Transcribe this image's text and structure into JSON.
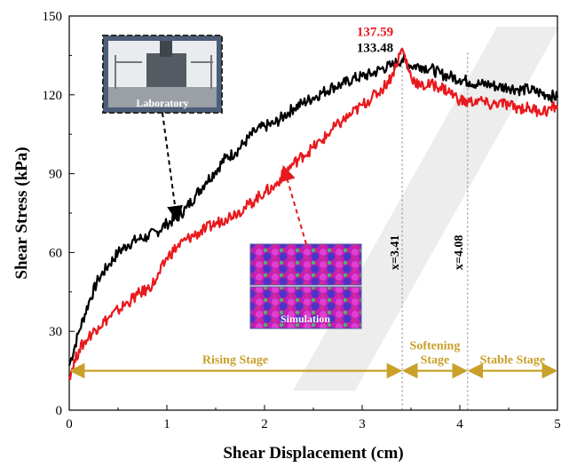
{
  "chart_data": {
    "type": "line",
    "xlabel": "Shear Displacement (cm)",
    "ylabel": "Shear Stress (kPa)",
    "xlim": [
      0,
      5
    ],
    "ylim": [
      0,
      150
    ],
    "x_ticks": [
      "0",
      "1",
      "2",
      "3",
      "4",
      "5"
    ],
    "y_ticks": [
      "0",
      "30",
      "60",
      "90",
      "120",
      "150"
    ],
    "series": [
      {
        "color": "#000000",
        "points": [
          [
            0,
            17
          ],
          [
            0.1,
            30
          ],
          [
            0.2,
            41
          ],
          [
            0.3,
            50
          ],
          [
            0.4,
            55
          ],
          [
            0.5,
            60
          ],
          [
            0.6,
            63
          ],
          [
            0.7,
            65
          ],
          [
            0.8,
            66
          ],
          [
            0.9,
            68
          ],
          [
            1.0,
            71
          ],
          [
            1.1,
            73
          ],
          [
            1.2,
            77
          ],
          [
            1.3,
            82
          ],
          [
            1.4,
            87
          ],
          [
            1.5,
            91
          ],
          [
            1.6,
            96
          ],
          [
            1.7,
            98
          ],
          [
            1.8,
            102
          ],
          [
            1.9,
            106
          ],
          [
            2.0,
            108
          ],
          [
            2.1,
            109
          ],
          [
            2.2,
            112
          ],
          [
            2.3,
            115
          ],
          [
            2.4,
            117
          ],
          [
            2.5,
            119
          ],
          [
            2.6,
            121
          ],
          [
            2.7,
            123
          ],
          [
            2.8,
            124
          ],
          [
            2.9,
            126
          ],
          [
            3.0,
            127
          ],
          [
            3.1,
            128
          ],
          [
            3.2,
            130
          ],
          [
            3.3,
            131
          ],
          [
            3.41,
            133.48
          ],
          [
            3.5,
            131
          ],
          [
            3.6,
            131
          ],
          [
            3.7,
            130
          ],
          [
            3.8,
            128
          ],
          [
            3.9,
            127
          ],
          [
            4.0,
            126
          ],
          [
            4.1,
            125
          ],
          [
            4.2,
            124
          ],
          [
            4.3,
            124
          ],
          [
            4.4,
            123
          ],
          [
            4.5,
            123
          ],
          [
            4.6,
            122
          ],
          [
            4.7,
            122
          ],
          [
            4.8,
            121
          ],
          [
            4.9,
            120
          ],
          [
            5.0,
            119
          ]
        ]
      },
      {
        "color": "#e8191d",
        "points": [
          [
            0,
            13
          ],
          [
            0.1,
            23
          ],
          [
            0.2,
            28
          ],
          [
            0.3,
            32
          ],
          [
            0.4,
            35
          ],
          [
            0.5,
            38
          ],
          [
            0.6,
            41
          ],
          [
            0.7,
            44
          ],
          [
            0.8,
            46
          ],
          [
            0.9,
            50
          ],
          [
            1.0,
            58
          ],
          [
            1.1,
            62
          ],
          [
            1.2,
            65
          ],
          [
            1.3,
            67
          ],
          [
            1.4,
            69
          ],
          [
            1.5,
            71
          ],
          [
            1.6,
            73
          ],
          [
            1.7,
            75
          ],
          [
            1.8,
            77
          ],
          [
            1.9,
            80
          ],
          [
            2.0,
            83
          ],
          [
            2.1,
            85
          ],
          [
            2.2,
            90
          ],
          [
            2.3,
            94
          ],
          [
            2.4,
            97
          ],
          [
            2.5,
            100
          ],
          [
            2.6,
            103
          ],
          [
            2.7,
            107
          ],
          [
            2.8,
            110
          ],
          [
            2.9,
            113
          ],
          [
            3.0,
            116
          ],
          [
            3.1,
            119
          ],
          [
            3.2,
            122
          ],
          [
            3.3,
            127
          ],
          [
            3.41,
            137.59
          ],
          [
            3.5,
            127
          ],
          [
            3.6,
            123
          ],
          [
            3.7,
            124
          ],
          [
            3.8,
            123
          ],
          [
            3.9,
            121
          ],
          [
            4.0,
            118
          ],
          [
            4.08,
            117
          ],
          [
            4.2,
            118
          ],
          [
            4.3,
            116
          ],
          [
            4.4,
            117
          ],
          [
            4.5,
            116
          ],
          [
            4.6,
            115
          ],
          [
            4.7,
            115
          ],
          [
            4.8,
            114
          ],
          [
            4.9,
            114
          ],
          [
            5.0,
            116
          ]
        ]
      }
    ],
    "annotations": {
      "peak_red": "137.59",
      "peak_black": "133.48",
      "vline1": {
        "x": 3.41,
        "label": "x=3.41"
      },
      "vline2": {
        "x": 4.08,
        "label": "x=4.08"
      },
      "stages": [
        {
          "label": "Rising Stage",
          "x_start": 0,
          "x_end": 3.41
        },
        {
          "label": "Softening",
          "label2": "Stage",
          "x_start": 3.41,
          "x_end": 4.08
        },
        {
          "label": "Stable Stage",
          "x_start": 4.08,
          "x_end": 5
        }
      ],
      "stage_arrow_y": 15,
      "inset_lab": {
        "label": "Laboratory",
        "pointer_to": [
          1.1,
          73
        ]
      },
      "inset_sim": {
        "label": "Simulation",
        "pointer_to": [
          2.2,
          92
        ]
      }
    },
    "colors": {
      "stage": "#c8a02a",
      "peak_red": "#e8191d",
      "peak_black": "#000000",
      "vline": "#999999"
    }
  }
}
